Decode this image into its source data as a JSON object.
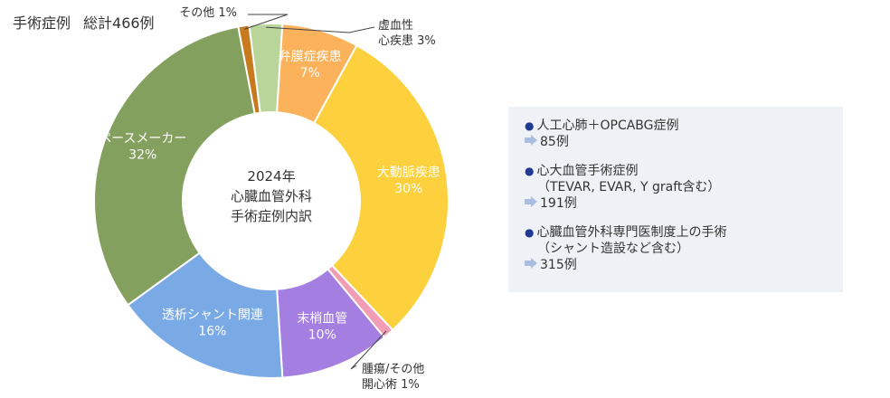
{
  "header": {
    "label": "手術症例",
    "total": "総計466例"
  },
  "chart_data": {
    "type": "pie",
    "variant": "donut",
    "title": "2024年 心臓血管外科 手術症例内訳",
    "center_label": [
      "2024年",
      "心臓血管外科",
      "手術症例内訳"
    ],
    "slices": [
      {
        "name": "その他",
        "value": 1,
        "pct_label": "1%",
        "color": "#c77a1e",
        "label_lines": [
          "その他 1%"
        ],
        "label_style": "outside"
      },
      {
        "name": "虚血性心疾患",
        "value": 3,
        "pct_label": "3%",
        "color": "#b9d59a",
        "label_lines": [
          "虚血性",
          "心疾患 3%"
        ],
        "label_style": "outside"
      },
      {
        "name": "弁膜症疾患",
        "value": 7,
        "pct_label": "7%",
        "color": "#fbb25a",
        "label_lines": [
          "弁膜症疾患",
          "7%"
        ],
        "label_style": "inside"
      },
      {
        "name": "大動脈疾患",
        "value": 30,
        "pct_label": "30%",
        "color": "#fdd03d",
        "label_lines": [
          "大動脈疾患",
          "30%"
        ],
        "label_style": "inside"
      },
      {
        "name": "腫瘍/その他開心術",
        "value": 1,
        "pct_label": "1%",
        "color": "#f29cb6",
        "label_lines": [
          "腫瘍/その他",
          "開心術 1%"
        ],
        "label_style": "outside"
      },
      {
        "name": "末梢血管",
        "value": 10,
        "pct_label": "10%",
        "color": "#a47ee1",
        "label_lines": [
          "末梢血管",
          "10%"
        ],
        "label_style": "inside"
      },
      {
        "name": "透析シャント関連",
        "value": 16,
        "pct_label": "16%",
        "color": "#7aaae6",
        "label_lines": [
          "透析シャント関連",
          "16%"
        ],
        "label_style": "inside"
      },
      {
        "name": "ペースメーカー",
        "value": 32,
        "pct_label": "32%",
        "color": "#84a05e",
        "label_lines": [
          "ペースメーカー",
          "32%"
        ],
        "label_style": "inside"
      }
    ]
  },
  "info": {
    "items": [
      {
        "title": "人工心肺＋OPCABG症例",
        "sub": "",
        "count": "85例"
      },
      {
        "title": "心大血管手術症例",
        "sub": "（TEVAR, EVAR, Y graft含む）",
        "count": "191例"
      },
      {
        "title": "心臓血管外科専門医制度上の手術",
        "sub": "（シャント造設など含む）",
        "count": "315例"
      }
    ],
    "bullet_color": "#1f3a93",
    "arrow_color": "#a9bedf"
  }
}
